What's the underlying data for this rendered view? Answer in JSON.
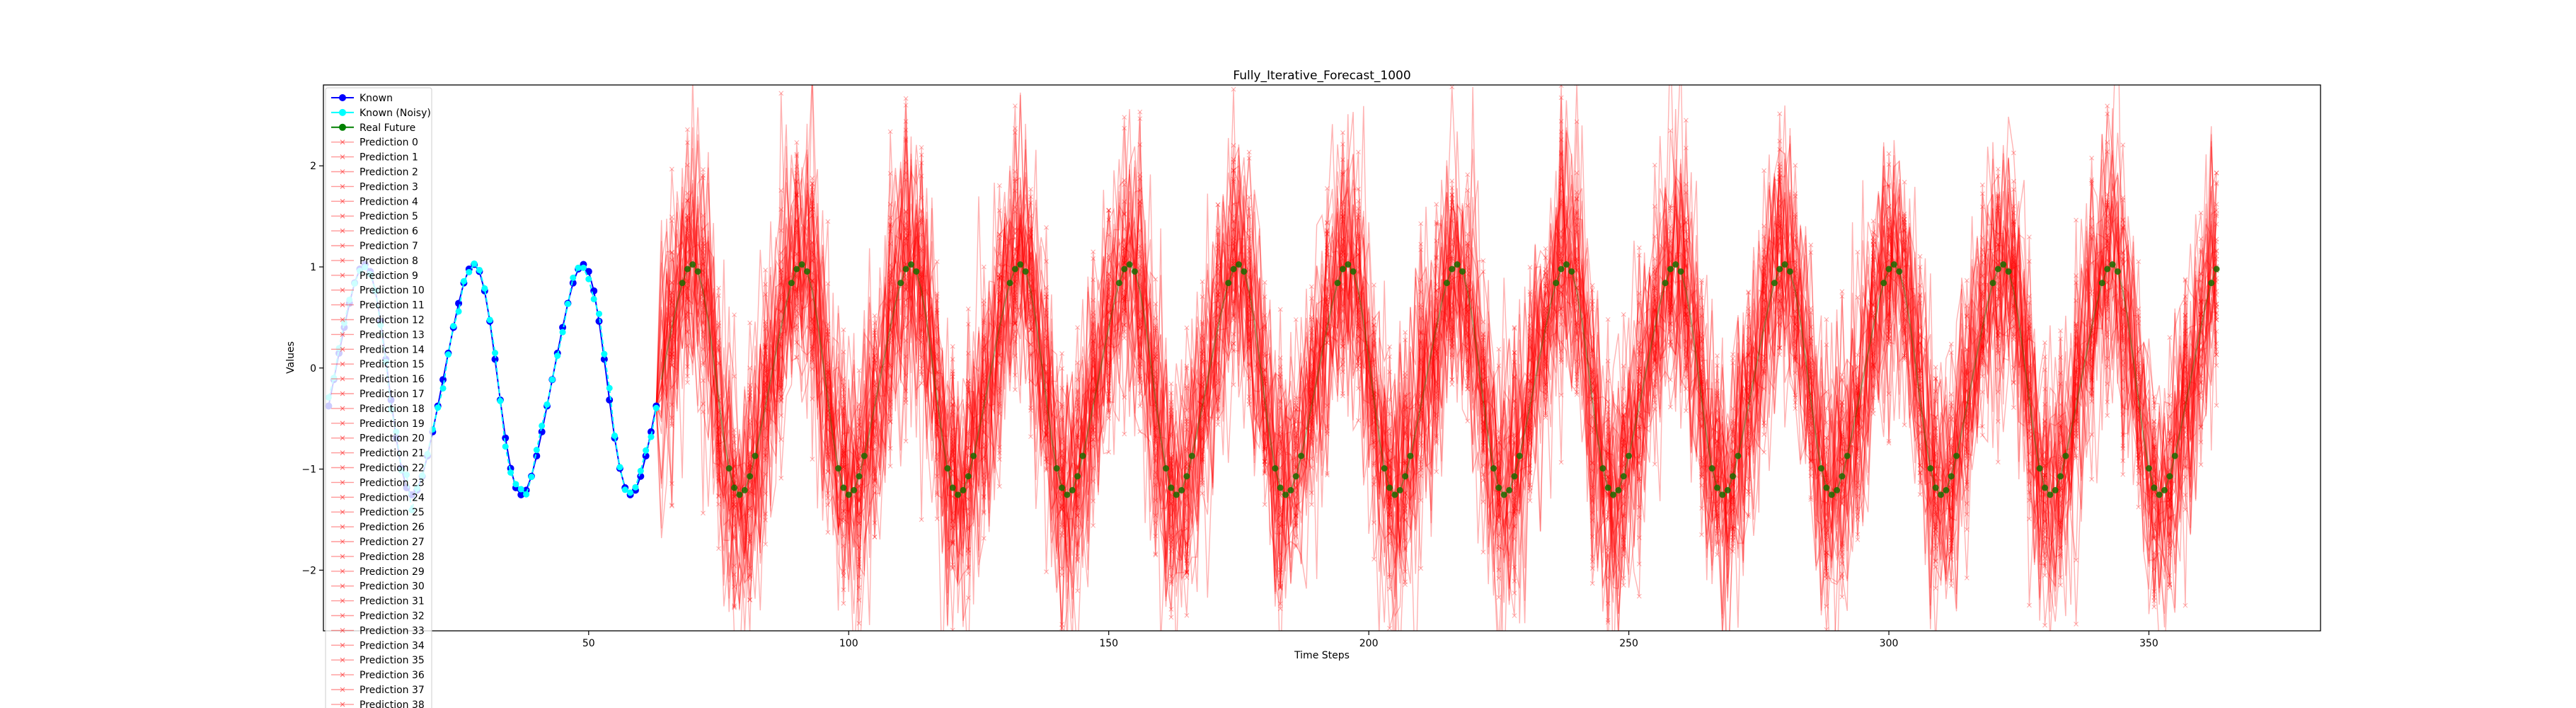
{
  "chart_data": {
    "type": "line",
    "title": "Fully_Iterative_Forecast_1000",
    "xlabel": "Time Steps",
    "ylabel": "Values",
    "xlim": [
      -1,
      383
    ],
    "ylim": [
      -2.6,
      2.8
    ],
    "xticks": [
      50,
      100,
      150,
      200,
      250,
      300,
      350
    ],
    "yticks": [
      -2,
      -1,
      0,
      1,
      2
    ],
    "ytick_labels": [
      "−2",
      "−1",
      "0",
      "1",
      "2"
    ],
    "grid": false,
    "legend_position": "top-left",
    "known_range": [
      0,
      63
    ],
    "future_range": [
      64,
      363
    ],
    "signal": {
      "period": 21,
      "trough_value": -1.23,
      "peak_value": 1.0
    },
    "prediction_noise_std": 0.65,
    "prediction_count_shown": 39,
    "series": [
      {
        "name": "Known",
        "color": "#0000ff",
        "marker": "circle"
      },
      {
        "name": "Known (Noisy)",
        "color": "#00ffff",
        "marker": "circle"
      },
      {
        "name": "Real Future",
        "color": "#008000",
        "marker": "circle"
      }
    ],
    "legend": [
      {
        "label": "Known",
        "color": "#0000ff",
        "marker": "circle"
      },
      {
        "label": "Known (Noisy)",
        "color": "#00ffff",
        "marker": "circle"
      },
      {
        "label": "Real Future",
        "color": "#008000",
        "marker": "circle"
      },
      {
        "label": "Prediction 0",
        "color": "#ff0000",
        "marker": "x"
      },
      {
        "label": "Prediction 1",
        "color": "#ff0000",
        "marker": "x"
      },
      {
        "label": "Prediction 2",
        "color": "#ff0000",
        "marker": "x"
      },
      {
        "label": "Prediction 3",
        "color": "#ff0000",
        "marker": "x"
      },
      {
        "label": "Prediction 4",
        "color": "#ff0000",
        "marker": "x"
      },
      {
        "label": "Prediction 5",
        "color": "#ff0000",
        "marker": "x"
      },
      {
        "label": "Prediction 6",
        "color": "#ff0000",
        "marker": "x"
      },
      {
        "label": "Prediction 7",
        "color": "#ff0000",
        "marker": "x"
      },
      {
        "label": "Prediction 8",
        "color": "#ff0000",
        "marker": "x"
      },
      {
        "label": "Prediction 9",
        "color": "#ff0000",
        "marker": "x"
      },
      {
        "label": "Prediction 10",
        "color": "#ff0000",
        "marker": "x"
      },
      {
        "label": "Prediction 11",
        "color": "#ff0000",
        "marker": "x"
      },
      {
        "label": "Prediction 12",
        "color": "#ff0000",
        "marker": "x"
      },
      {
        "label": "Prediction 13",
        "color": "#ff0000",
        "marker": "x"
      },
      {
        "label": "Prediction 14",
        "color": "#ff0000",
        "marker": "x"
      },
      {
        "label": "Prediction 15",
        "color": "#ff0000",
        "marker": "x"
      },
      {
        "label": "Prediction 16",
        "color": "#ff0000",
        "marker": "x"
      },
      {
        "label": "Prediction 17",
        "color": "#ff0000",
        "marker": "x"
      },
      {
        "label": "Prediction 18",
        "color": "#ff0000",
        "marker": "x"
      },
      {
        "label": "Prediction 19",
        "color": "#ff0000",
        "marker": "x"
      },
      {
        "label": "Prediction 20",
        "color": "#ff0000",
        "marker": "x"
      },
      {
        "label": "Prediction 21",
        "color": "#ff0000",
        "marker": "x"
      },
      {
        "label": "Prediction 22",
        "color": "#ff0000",
        "marker": "x"
      },
      {
        "label": "Prediction 23",
        "color": "#ff0000",
        "marker": "x"
      },
      {
        "label": "Prediction 24",
        "color": "#ff0000",
        "marker": "x"
      },
      {
        "label": "Prediction 25",
        "color": "#ff0000",
        "marker": "x"
      },
      {
        "label": "Prediction 26",
        "color": "#ff0000",
        "marker": "x"
      },
      {
        "label": "Prediction 27",
        "color": "#ff0000",
        "marker": "x"
      },
      {
        "label": "Prediction 28",
        "color": "#ff0000",
        "marker": "x"
      },
      {
        "label": "Prediction 29",
        "color": "#ff0000",
        "marker": "x"
      },
      {
        "label": "Prediction 30",
        "color": "#ff0000",
        "marker": "x"
      },
      {
        "label": "Prediction 31",
        "color": "#ff0000",
        "marker": "x"
      },
      {
        "label": "Prediction 32",
        "color": "#ff0000",
        "marker": "x"
      },
      {
        "label": "Prediction 33",
        "color": "#ff0000",
        "marker": "x"
      },
      {
        "label": "Prediction 34",
        "color": "#ff0000",
        "marker": "x"
      },
      {
        "label": "Prediction 35",
        "color": "#ff0000",
        "marker": "x"
      },
      {
        "label": "Prediction 36",
        "color": "#ff0000",
        "marker": "x"
      },
      {
        "label": "Prediction 37",
        "color": "#ff0000",
        "marker": "x"
      },
      {
        "label": "Prediction 38",
        "color": "#ff0000",
        "marker": "x"
      }
    ]
  }
}
